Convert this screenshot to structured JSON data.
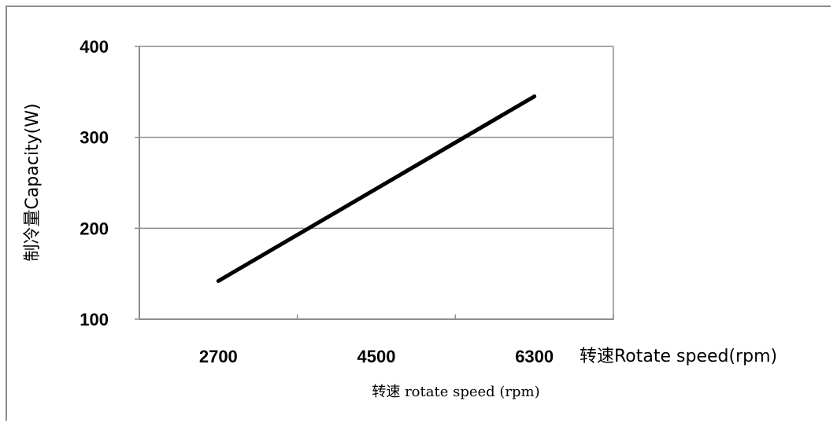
{
  "chart_data": {
    "type": "line",
    "title": "",
    "categories": [
      "2700",
      "4500",
      "6300"
    ],
    "x": [
      2700,
      6300
    ],
    "series": [
      {
        "values": [
          142,
          345
        ]
      }
    ],
    "ylim": [
      100,
      400
    ],
    "yticks": [
      "100",
      "200",
      "300",
      "400"
    ],
    "ylabel": "制冷量Capacity(W)",
    "xlabel": "转速 rotate speed (rpm)",
    "side_label": "转速Rotate speed(rpm)",
    "grid": true,
    "colors": {
      "line": "#000000",
      "grid": "#8c8c8c",
      "axis": "#8c8c8c",
      "frame": "#8c8c8c"
    }
  }
}
